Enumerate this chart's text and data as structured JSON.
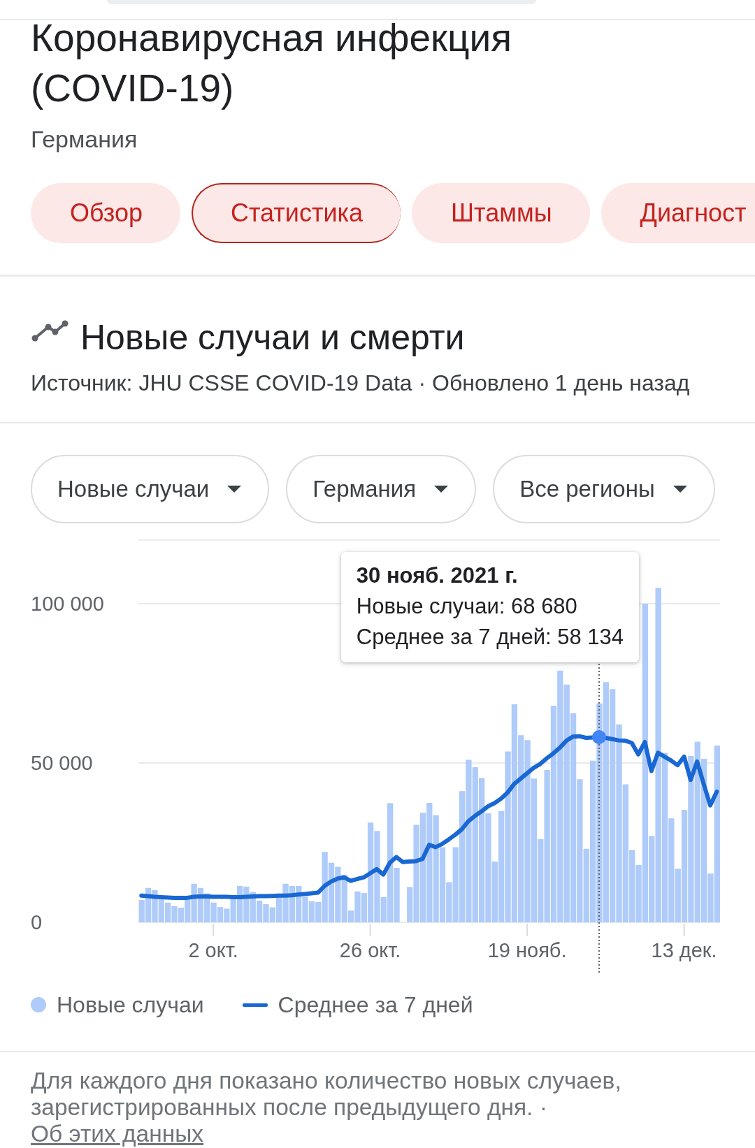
{
  "chart_data": [
    {
      "type": "other",
      "title": "Коронавирусная инфекция (COVID-19)",
      "subtitle": "Германия",
      "annotations": [
        "Обзор",
        "Статистика",
        "Штаммы",
        "Диагност"
      ]
    },
    {
      "type": "bar",
      "title": "Новые случаи и смерти",
      "subtitle": "Источник: JHU CSSE COVID-19 Data · Обновлено 1 день назад",
      "annotations": [
        "Новые случаи",
        "Германия",
        "Все регионы",
        "30 нояб. 2021 г.\nНовые случаи: 68 680\nСреднее за 7 дней: 58 134",
        "Для каждого дня показано количество новых случаев, зарегистрированных после предыдущего дня. ·",
        "Об этих данных"
      ],
      "x": [
        "2021-09-21",
        "2021-09-22",
        "2021-09-23",
        "2021-09-24",
        "2021-09-25",
        "2021-09-26",
        "2021-09-27",
        "2021-09-28",
        "2021-09-29",
        "2021-09-30",
        "2021-10-01",
        "2021-10-02",
        "2021-10-03",
        "2021-10-04",
        "2021-10-05",
        "2021-10-06",
        "2021-10-07",
        "2021-10-08",
        "2021-10-09",
        "2021-10-10",
        "2021-10-11",
        "2021-10-12",
        "2021-10-13",
        "2021-10-14",
        "2021-10-15",
        "2021-10-16",
        "2021-10-17",
        "2021-10-18",
        "2021-10-19",
        "2021-10-20",
        "2021-10-21",
        "2021-10-22",
        "2021-10-23",
        "2021-10-24",
        "2021-10-25",
        "2021-10-26",
        "2021-10-27",
        "2021-10-28",
        "2021-10-29",
        "2021-10-30",
        "2021-10-31",
        "2021-11-01",
        "2021-11-02",
        "2021-11-03",
        "2021-11-04",
        "2021-11-05",
        "2021-11-06",
        "2021-11-07",
        "2021-11-08",
        "2021-11-09",
        "2021-11-10",
        "2021-11-11",
        "2021-11-12",
        "2021-11-13",
        "2021-11-14",
        "2021-11-15",
        "2021-11-16",
        "2021-11-17",
        "2021-11-18",
        "2021-11-19",
        "2021-11-20",
        "2021-11-21",
        "2021-11-22",
        "2021-11-23",
        "2021-11-24",
        "2021-11-25",
        "2021-11-26",
        "2021-11-27",
        "2021-11-28",
        "2021-11-29",
        "2021-11-30",
        "2021-12-01",
        "2021-12-02",
        "2021-12-03",
        "2021-12-04",
        "2021-12-05",
        "2021-12-06",
        "2021-12-07",
        "2021-12-08",
        "2021-12-09",
        "2021-12-10",
        "2021-12-11",
        "2021-12-12",
        "2021-12-13",
        "2021-12-14",
        "2021-12-15",
        "2021-12-16",
        "2021-12-17",
        "2021-12-18"
      ],
      "series": [
        {
          "name": "Новые случаи",
          "type": "bar",
          "color": "#aecbfa",
          "values": [
            7000,
            10800,
            10100,
            7400,
            6200,
            5100,
            4600,
            7300,
            12100,
            10800,
            9100,
            6200,
            4800,
            4300,
            7300,
            11400,
            11200,
            9500,
            6800,
            5700,
            4700,
            8100,
            12100,
            11400,
            11400,
            8000,
            6600,
            6400,
            22100,
            18700,
            17400,
            14900,
            3700,
            9700,
            9200,
            31300,
            28700,
            7900,
            37400,
            17100,
            null,
            11100,
            30600,
            34400,
            37500,
            33600,
            23600,
            12600,
            23600,
            41200,
            51000,
            48700,
            45300,
            34200,
            19100,
            34900,
            53600,
            68400,
            58700,
            57200,
            45100,
            26100,
            47800,
            68000,
            79000,
            74600,
            65600,
            44900,
            23100,
            50700,
            68680,
            75400,
            73200,
            62100,
            43300,
            22700,
            18000,
            100000,
            27100,
            105000,
            53200,
            32600,
            16800,
            35300,
            52200,
            56700,
            51300,
            15300,
            55500
          ]
        },
        {
          "name": "Среднее за 7 дней",
          "type": "line",
          "color": "#1967d2",
          "values": [
            8400,
            8200,
            8000,
            7900,
            7800,
            7700,
            7700,
            7700,
            8000,
            8100,
            8100,
            8000,
            8000,
            8000,
            7900,
            7900,
            8000,
            8100,
            8200,
            8200,
            8300,
            8400,
            8400,
            8500,
            8700,
            8900,
            9100,
            9300,
            11400,
            12800,
            13700,
            14100,
            13000,
            13600,
            14100,
            15400,
            16700,
            15000,
            18700,
            20500,
            18900,
            19100,
            19200,
            19900,
            24300,
            23600,
            24600,
            26000,
            27500,
            29200,
            31700,
            33400,
            34800,
            36400,
            37400,
            38800,
            40700,
            43400,
            45100,
            46800,
            48500,
            49700,
            51500,
            53000,
            54800,
            57000,
            58300,
            58400,
            57900,
            58000,
            58134,
            57900,
            57500,
            57100,
            57000,
            56300,
            52700,
            56600,
            47500,
            53200,
            52000,
            50800,
            49300,
            52000,
            44700,
            50500,
            43400,
            36700,
            41000
          ]
        }
      ],
      "xlim": [
        "2021-09-20T12:00",
        "2021-12-18T12:00"
      ],
      "xticks": [
        {
          "value": "2021-10-02",
          "label": "2 окт."
        },
        {
          "value": "2021-10-26",
          "label": "26 окт."
        },
        {
          "value": "2021-11-19",
          "label": "19 нояб."
        },
        {
          "value": "2021-12-13",
          "label": "13 дек."
        }
      ],
      "ylim": [
        0,
        120000
      ],
      "yticks": [
        0,
        {
          "value": 50000,
          "label": "50 000"
        },
        {
          "value": 100000,
          "label": "100 000"
        }
      ],
      "ref_lines": [
        {
          "axis": "x",
          "value": "2021-11-30",
          "color": "#5f6368",
          "line_style": "dotted"
        }
      ],
      "grid": "y",
      "legend": "bottom left"
    }
  ]
}
